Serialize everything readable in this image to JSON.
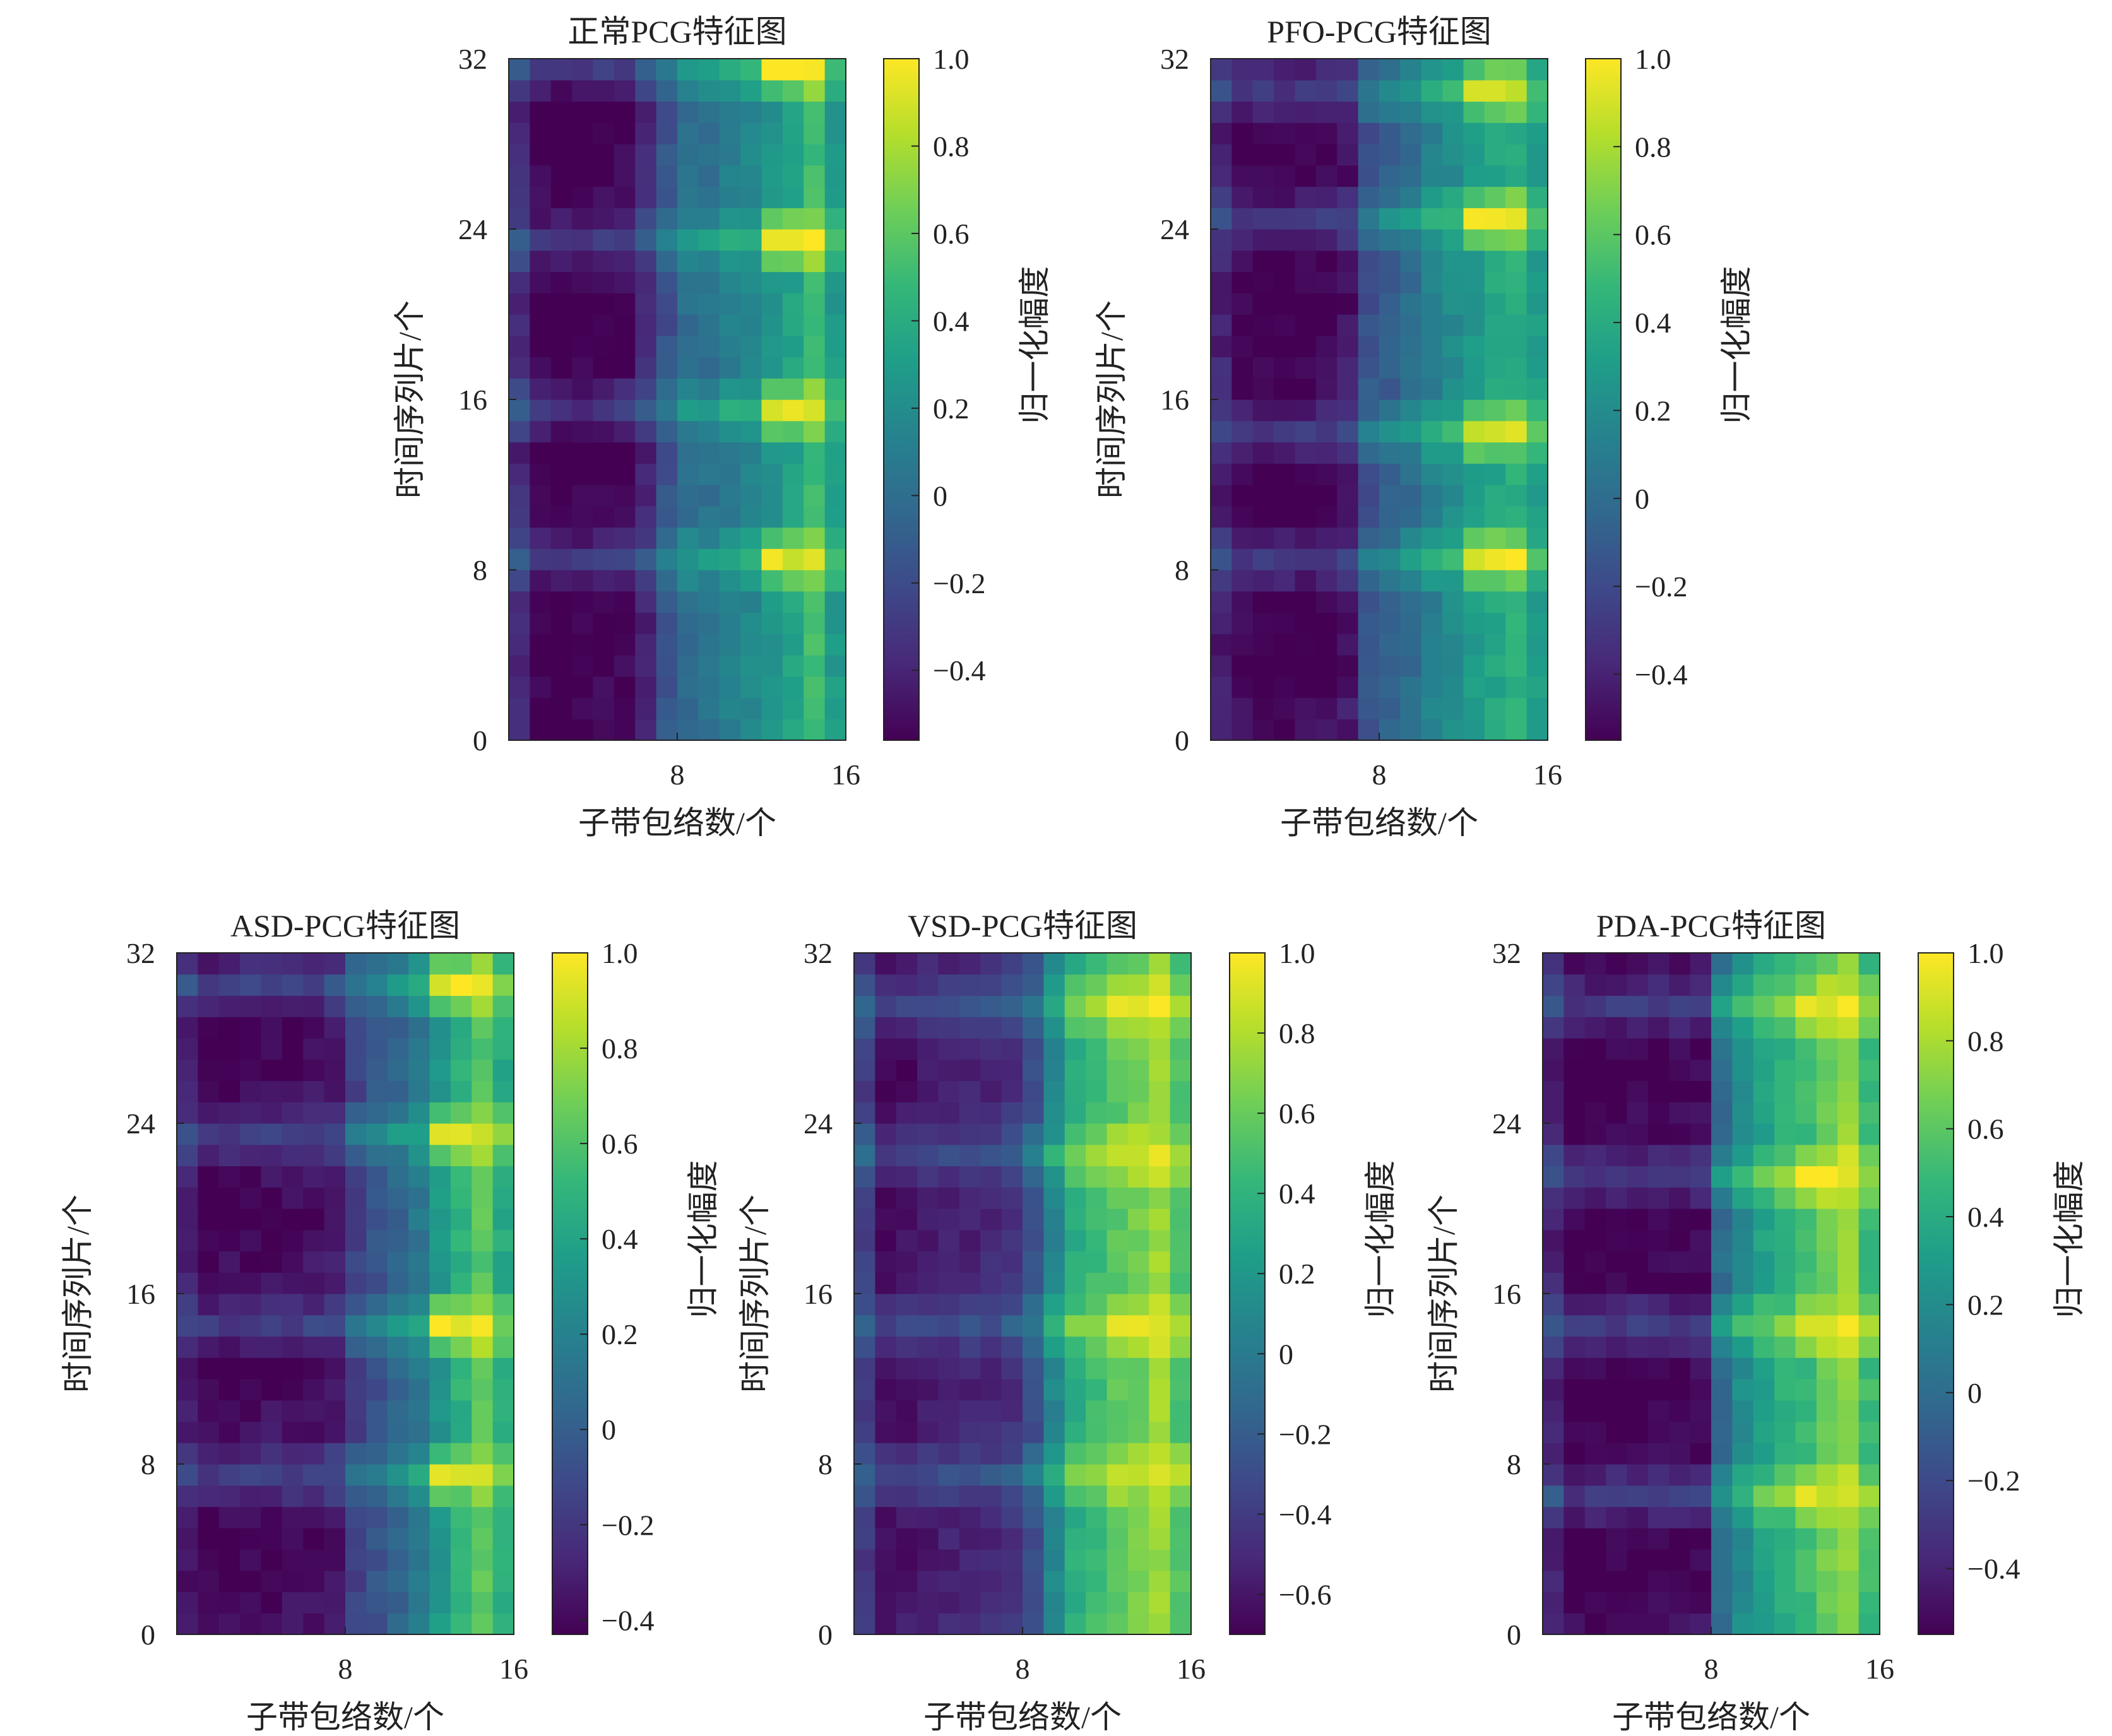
{
  "figure": {
    "colormap": "viridis",
    "colormap_stops": [
      "#440154",
      "#482878",
      "#3e4989",
      "#31688e",
      "#26828e",
      "#1f9e89",
      "#35b779",
      "#6ece58",
      "#b5de2b",
      "#fde725"
    ]
  },
  "chart_data": [
    {
      "type": "heatmap",
      "title": "正常PCG特征图",
      "xlabel": "子带包络数/个",
      "ylabel": "时间序列片/个",
      "colorbar_label": "归一化幅度",
      "x_ticks": [
        "8",
        "16"
      ],
      "y_ticks": [
        "0",
        "8",
        "16",
        "24",
        "32"
      ],
      "cbar_ticks": [
        "1.0",
        "0.8",
        "0.6",
        "0.4",
        "0.2",
        "0",
        "−0.2",
        "−0.4"
      ],
      "cbar_values": [
        1.0,
        0.8,
        0.6,
        0.4,
        0.2,
        0.0,
        -0.2,
        -0.4
      ],
      "cbar_range": [
        -0.56,
        1.0
      ],
      "xlim": [
        0,
        16
      ],
      "ylim": [
        0,
        32
      ],
      "cols": 16,
      "rows": 32,
      "profile": [
        -0.34,
        -0.54,
        -0.56,
        -0.54,
        -0.52,
        -0.5,
        -0.36,
        -0.12,
        0.0,
        0.02,
        0.1,
        0.16,
        0.24,
        0.34,
        0.52,
        0.28
      ],
      "bright_rows": [
        8,
        15,
        23,
        31
      ],
      "peak_values": [
        0.92,
        0.95,
        0.96,
        0.98
      ],
      "dark_rows": [
        4,
        13,
        19,
        28
      ]
    },
    {
      "type": "heatmap",
      "title": "PFO-PCG特征图",
      "xlabel": "子带包络数/个",
      "ylabel": "时间序列片/个",
      "colorbar_label": "归一化幅度",
      "x_ticks": [
        "8",
        "16"
      ],
      "y_ticks": [
        "0",
        "8",
        "16",
        "24",
        "32"
      ],
      "cbar_ticks": [
        "1.0",
        "0.8",
        "0.6",
        "0.4",
        "0.2",
        "0",
        "−0.2",
        "−0.4"
      ],
      "cbar_values": [
        1.0,
        0.8,
        0.6,
        0.4,
        0.2,
        0.0,
        -0.2,
        -0.4
      ],
      "cbar_range": [
        -0.55,
        1.0
      ],
      "xlim": [
        0,
        16
      ],
      "ylim": [
        0,
        32
      ],
      "cols": 16,
      "rows": 32,
      "profile": [
        -0.38,
        -0.5,
        -0.52,
        -0.53,
        -0.52,
        -0.5,
        -0.44,
        -0.12,
        -0.08,
        0.0,
        0.12,
        0.2,
        0.28,
        0.36,
        0.42,
        0.3
      ],
      "bright_rows": [
        8,
        14,
        24,
        30
      ],
      "peak_values": [
        0.95,
        0.88,
        0.97,
        0.9
      ],
      "dark_rows": [
        4,
        11,
        20,
        27
      ]
    },
    {
      "type": "heatmap",
      "title": "ASD-PCG特征图",
      "xlabel": "子带包络数/个",
      "ylabel": "时间序列片/个",
      "colorbar_label": "归一化幅度",
      "x_ticks": [
        "8",
        "16"
      ],
      "y_ticks": [
        "0",
        "8",
        "16",
        "24",
        "32"
      ],
      "cbar_ticks": [
        "1.0",
        "0.8",
        "0.6",
        "0.4",
        "0.2",
        "0",
        "−0.2",
        "−0.4"
      ],
      "cbar_values": [
        1.0,
        0.8,
        0.6,
        0.4,
        0.2,
        0.0,
        -0.2,
        -0.4
      ],
      "cbar_range": [
        -0.43,
        1.0
      ],
      "xlim": [
        0,
        16
      ],
      "ylim": [
        0,
        32
      ],
      "cols": 16,
      "rows": 32,
      "profile": [
        -0.3,
        -0.4,
        -0.38,
        -0.36,
        -0.36,
        -0.36,
        -0.34,
        -0.3,
        -0.14,
        -0.06,
        0.04,
        0.14,
        0.32,
        0.48,
        0.62,
        0.44
      ],
      "bright_rows": [
        7,
        14,
        23,
        30
      ],
      "peak_values": [
        0.9,
        0.98,
        0.9,
        0.96
      ],
      "dark_rows": [
        3,
        12,
        19,
        27
      ]
    },
    {
      "type": "heatmap",
      "title": "VSD-PCG特征图",
      "xlabel": "子带包络数/个",
      "ylabel": "时间序列片/个",
      "colorbar_label": "归一化幅度",
      "x_ticks": [
        "8",
        "16"
      ],
      "y_ticks": [
        "0",
        "8",
        "16",
        "24",
        "32"
      ],
      "cbar_ticks": [
        "1.0",
        "0.8",
        "0.6",
        "0.4",
        "0.2",
        "0",
        "−0.2",
        "−0.4",
        "−0.6"
      ],
      "cbar_values": [
        1.0,
        0.8,
        0.6,
        0.4,
        0.2,
        0.0,
        -0.2,
        -0.4,
        -0.6
      ],
      "cbar_range": [
        -0.7,
        1.0
      ],
      "xlim": [
        0,
        16
      ],
      "ylim": [
        0,
        32
      ],
      "cols": 16,
      "rows": 32,
      "profile": [
        -0.36,
        -0.6,
        -0.58,
        -0.54,
        -0.52,
        -0.5,
        -0.48,
        -0.42,
        -0.28,
        0.08,
        0.36,
        0.46,
        0.56,
        0.62,
        0.74,
        0.52
      ],
      "bright_rows": [
        7,
        14,
        22,
        29
      ],
      "peak_values": [
        0.88,
        0.95,
        0.9,
        0.96
      ],
      "dark_rows": [
        3,
        11,
        19,
        26
      ]
    },
    {
      "type": "heatmap",
      "title": "PDA-PCG特征图",
      "xlabel": "子带包络数/个",
      "ylabel": "时间序列片/个",
      "colorbar_label": "归一化幅度",
      "x_ticks": [
        "8",
        "16"
      ],
      "y_ticks": [
        "0",
        "8",
        "16",
        "24",
        "32"
      ],
      "cbar_ticks": [
        "1.0",
        "0.8",
        "0.6",
        "0.4",
        "0.2",
        "0",
        "−0.2",
        "−0.4"
      ],
      "cbar_values": [
        1.0,
        0.8,
        0.6,
        0.4,
        0.2,
        0.0,
        -0.2,
        -0.4
      ],
      "cbar_range": [
        -0.55,
        1.0
      ],
      "xlim": [
        0,
        16
      ],
      "ylim": [
        0,
        32
      ],
      "cols": 16,
      "rows": 32,
      "profile": [
        -0.36,
        -0.52,
        -0.52,
        -0.5,
        -0.5,
        -0.5,
        -0.5,
        -0.48,
        0.0,
        0.2,
        0.34,
        0.42,
        0.5,
        0.66,
        0.74,
        0.5
      ],
      "bright_rows": [
        6,
        14,
        21,
        29
      ],
      "peak_values": [
        0.9,
        0.96,
        0.98,
        0.95
      ],
      "dark_rows": [
        3,
        10,
        18,
        26
      ]
    }
  ]
}
